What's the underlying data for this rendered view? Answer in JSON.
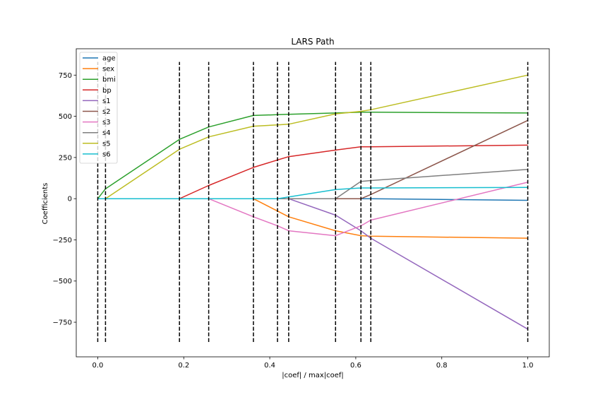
{
  "chart_data": {
    "type": "line",
    "title": "LARS Path",
    "xlabel": "|coef| / max|coef|",
    "ylabel": "Coefficients",
    "xlim": [
      -0.05,
      1.05
    ],
    "ylim": [
      -960,
      910
    ],
    "x_ticks": [
      0.0,
      0.2,
      0.4,
      0.6,
      0.8,
      1.0
    ],
    "x_tick_labels": [
      "0.0",
      "0.2",
      "0.4",
      "0.6",
      "0.8",
      "1.0"
    ],
    "y_ticks": [
      750,
      500,
      250,
      0,
      -250,
      -500,
      -750
    ],
    "y_tick_labels": [
      "750",
      "500",
      "250",
      "0",
      "−250",
      "−500",
      "−750"
    ],
    "grid": false,
    "legend_position": "top-left",
    "x": [
      0.0,
      0.018,
      0.19,
      0.258,
      0.362,
      0.418,
      0.444,
      0.553,
      0.612,
      0.635,
      1.0
    ],
    "vlines": [
      0.0,
      0.018,
      0.19,
      0.258,
      0.362,
      0.418,
      0.444,
      0.553,
      0.612,
      0.635,
      1.0
    ],
    "vline_range": [
      -870,
      830
    ],
    "series": [
      {
        "name": "age",
        "color": "#1f77b4",
        "values": [
          0,
          0,
          0,
          0,
          0,
          0,
          0,
          0,
          0,
          0,
          -10
        ]
      },
      {
        "name": "sex",
        "color": "#ff7f0e",
        "values": [
          0,
          0,
          0,
          0,
          0,
          -75,
          -110,
          -195,
          -225,
          -228,
          -240
        ]
      },
      {
        "name": "bmi",
        "color": "#2ca02c",
        "values": [
          0,
          60,
          360,
          435,
          505,
          510,
          512,
          520,
          525,
          525,
          520
        ]
      },
      {
        "name": "bp",
        "color": "#d62728",
        "values": [
          0,
          0,
          0,
          80,
          190,
          235,
          255,
          295,
          315,
          315,
          325
        ]
      },
      {
        "name": "s1",
        "color": "#9467bd",
        "values": [
          0,
          0,
          0,
          0,
          0,
          0,
          0,
          -100,
          -195,
          -240,
          -792
        ]
      },
      {
        "name": "s2",
        "color": "#8c564b",
        "values": [
          0,
          0,
          0,
          0,
          0,
          0,
          0,
          0,
          0,
          25,
          475
        ]
      },
      {
        "name": "s3",
        "color": "#e377c2",
        "values": [
          0,
          0,
          0,
          0,
          -110,
          -165,
          -195,
          -225,
          -165,
          -130,
          100
        ]
      },
      {
        "name": "s4",
        "color": "#7f7f7f",
        "values": [
          0,
          0,
          0,
          0,
          0,
          0,
          0,
          0,
          105,
          110,
          178
        ]
      },
      {
        "name": "s5",
        "color": "#bcbd22",
        "values": [
          0,
          0,
          300,
          375,
          440,
          448,
          452,
          515,
          530,
          540,
          750
        ]
      },
      {
        "name": "s6",
        "color": "#17becf",
        "values": [
          0,
          0,
          0,
          0,
          0,
          0,
          10,
          55,
          65,
          65,
          68
        ]
      }
    ]
  }
}
